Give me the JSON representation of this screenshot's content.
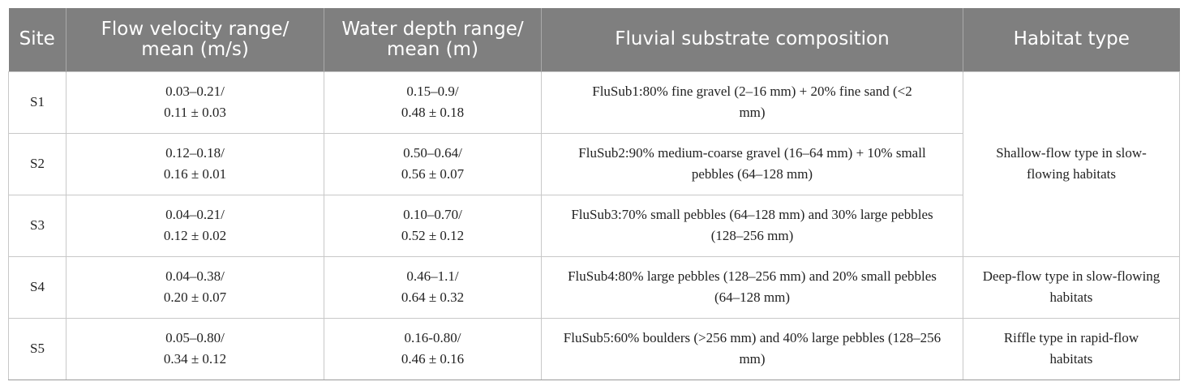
{
  "table": {
    "headers": {
      "site": "Site",
      "velocity_l1": "Flow velocity range/",
      "velocity_l2": "mean (m/s)",
      "depth_l1": "Water depth range/",
      "depth_l2": "mean (m)",
      "substrate": "Fluvial substrate composition",
      "habitat": "Habitat type"
    },
    "rows": [
      {
        "site": "S1",
        "velocity_range": "0.03–0.21/",
        "velocity_mean": "0.11 ± 0.03",
        "depth_range": "0.15–0.9/",
        "depth_mean": "0.48 ± 0.18",
        "substrate": "FluSub1:80% fine gravel (2–16 mm) + 20% fine sand (<2 mm)"
      },
      {
        "site": "S2",
        "velocity_range": "0.12–0.18/",
        "velocity_mean": "0.16 ± 0.01",
        "depth_range": "0.50–0.64/",
        "depth_mean": "0.56 ± 0.07",
        "substrate": "FluSub2:90% medium-coarse gravel (16–64 mm) + 10% small pebbles (64–128 mm)"
      },
      {
        "site": "S3",
        "velocity_range": "0.04–0.21/",
        "velocity_mean": "0.12 ± 0.02",
        "depth_range": "0.10–0.70/",
        "depth_mean": "0.52 ± 0.12",
        "substrate": "FluSub3:70% small pebbles (64–128 mm) and 30% large pebbles (128–256 mm)"
      },
      {
        "site": "S4",
        "velocity_range": "0.04–0.38/",
        "velocity_mean": "0.20 ± 0.07",
        "depth_range": "0.46–1.1/",
        "depth_mean": "0.64 ± 0.32",
        "substrate": "FluSub4:80% large pebbles (128–256 mm) and 20% small pebbles (64–128 mm)"
      },
      {
        "site": "S5",
        "velocity_range": "0.05–0.80/",
        "velocity_mean": "0.34 ± 0.12",
        "depth_range": "0.16-0.80/",
        "depth_mean": "0.46 ± 0.16",
        "substrate": "FluSub5:60% boulders (>256 mm) and 40% large pebbles (128–256 mm)"
      }
    ],
    "habitats": {
      "s1_s3": "Shallow-flow type in slow-flowing habitats",
      "s4": "Deep-flow type in slow-flowing habitats",
      "s5": "Riffle type in rapid-flow habitats"
    }
  }
}
